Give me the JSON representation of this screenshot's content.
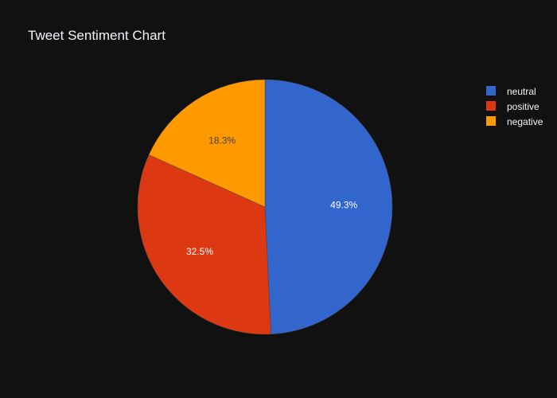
{
  "chart_data": {
    "type": "pie",
    "title": "Tweet Sentiment Chart",
    "categories": [
      "neutral",
      "positive",
      "negative"
    ],
    "values": [
      49.3,
      32.5,
      18.3
    ],
    "value_labels": [
      "49.3%",
      "32.5%",
      "18.3%"
    ],
    "colors": [
      "#3366CC",
      "#DC3912",
      "#FF9900"
    ],
    "label_colors": [
      "#ffffff",
      "#ffffff",
      "#444444"
    ],
    "legend_position": "top-right",
    "direction": "clockwise",
    "start": "top"
  },
  "theme": {
    "background": "#111111",
    "text_color": "#f2f5fa",
    "slice_border": "#444444"
  }
}
